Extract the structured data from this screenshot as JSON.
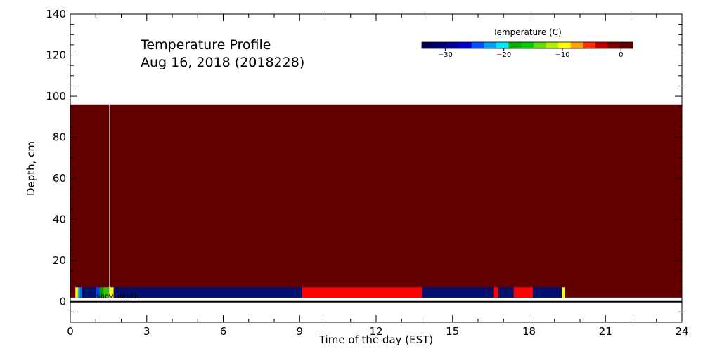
{
  "chart_data": {
    "type": "heatmap",
    "title_line1": "Temperature Profile",
    "title_line2": "Aug 16, 2018 (2018228)",
    "xlabel": "Time of the day (EST)",
    "ylabel": "Depth, cm",
    "xlim": [
      0,
      24
    ],
    "ylim": [
      -10,
      140
    ],
    "xticks": [
      0,
      3,
      6,
      9,
      12,
      15,
      18,
      21,
      24
    ],
    "yticks": [
      0,
      20,
      40,
      60,
      80,
      100,
      120,
      140
    ],
    "background_field": {
      "x": [
        0,
        24
      ],
      "y": [
        2,
        96
      ],
      "color": "#620000"
    },
    "marker_time": 1.55,
    "surface_depth": 0,
    "annotation": "snow depth",
    "strip": {
      "y": [
        2,
        7
      ],
      "segments": [
        {
          "x": [
            0.2,
            0.3
          ],
          "color": "#ffff00"
        },
        {
          "x": [
            0.3,
            0.38
          ],
          "color": "#00c8ff"
        },
        {
          "x": [
            0.38,
            0.45
          ],
          "color": "#0064ff"
        },
        {
          "x": [
            0.45,
            1.0
          ],
          "color": "#001070"
        },
        {
          "x": [
            1.0,
            1.15
          ],
          "color": "#0040ff"
        },
        {
          "x": [
            1.15,
            1.3
          ],
          "color": "#00a000"
        },
        {
          "x": [
            1.3,
            1.55
          ],
          "color": "#40c000"
        },
        {
          "x": [
            1.55,
            1.7
          ],
          "color": "#ffff00"
        },
        {
          "x": [
            1.7,
            9.1
          ],
          "color": "#001070"
        },
        {
          "x": [
            9.1,
            13.8
          ],
          "color": "#ff0000"
        },
        {
          "x": [
            13.8,
            16.6
          ],
          "color": "#001070"
        },
        {
          "x": [
            16.6,
            16.8
          ],
          "color": "#ff0000"
        },
        {
          "x": [
            16.8,
            17.4
          ],
          "color": "#001070"
        },
        {
          "x": [
            17.4,
            18.15
          ],
          "color": "#ff0000"
        },
        {
          "x": [
            18.15,
            19.3
          ],
          "color": "#001070"
        },
        {
          "x": [
            19.3,
            19.4
          ],
          "color": "#ffff00"
        }
      ]
    },
    "colorbar": {
      "title": "Temperature (C)",
      "range": [
        -34,
        2
      ],
      "ticks": [
        -30,
        -20,
        -10,
        0
      ],
      "tick_labels": [
        "−30",
        "−20",
        "−10",
        "0"
      ],
      "colors": [
        "#00005a",
        "#00007a",
        "#0000a0",
        "#0000d0",
        "#0050ff",
        "#00a0ff",
        "#00e8ff",
        "#00b000",
        "#00d000",
        "#60e000",
        "#b0f000",
        "#ffff00",
        "#ffa000",
        "#ff3000",
        "#c00000",
        "#800000",
        "#600000"
      ]
    }
  }
}
